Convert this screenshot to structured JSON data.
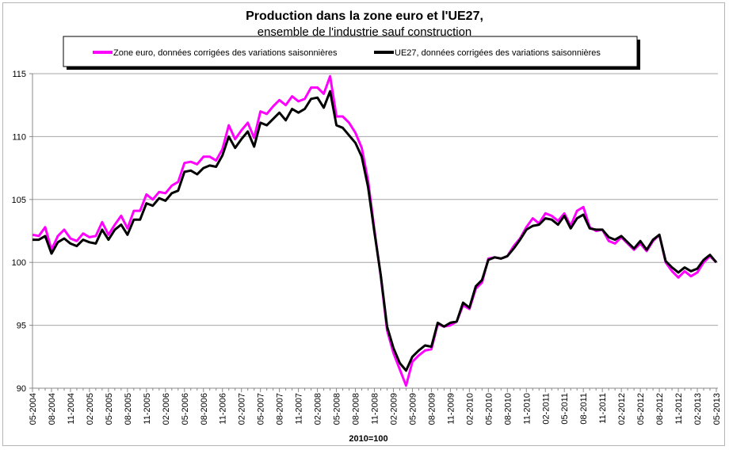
{
  "chart_data": {
    "type": "line",
    "title": "Production dans la zone euro et l'UE27,",
    "subtitle": "ensemble de l'industrie sauf construction",
    "xlabel": "2010=100",
    "ylabel": "",
    "ylim": [
      90,
      115
    ],
    "yticks": [
      "90",
      "95",
      "100",
      "105",
      "110",
      "115"
    ],
    "grid": true,
    "legend_position": "top",
    "x_start": "05-2004",
    "x_end": "05-2013",
    "xtick_labels": [
      "05-2004",
      "08-2004",
      "11-2004",
      "02-2005",
      "05-2005",
      "08-2005",
      "11-2005",
      "02-2006",
      "05-2006",
      "08-2006",
      "11-2006",
      "02-2007",
      "05-2007",
      "08-2007",
      "11-2007",
      "02-2008",
      "05-2008",
      "08-2008",
      "11-2008",
      "02-2009",
      "05-2009",
      "08-2009",
      "11-2009",
      "02-2010",
      "05-2010",
      "08-2010",
      "11-2010",
      "02-2011",
      "05-2011",
      "08-2011",
      "11-2011",
      "02-2012",
      "05-2012",
      "08-2012",
      "11-2012",
      "02-2013",
      "05-2013"
    ],
    "series": [
      {
        "name": "Zone euro, données corrigées des variations saisonnières",
        "color": "#ff00ff",
        "values": [
          102.2,
          102.1,
          102.8,
          101.0,
          102.1,
          102.6,
          101.9,
          101.7,
          102.3,
          102.0,
          102.1,
          103.2,
          102.2,
          103.0,
          103.7,
          102.7,
          104.1,
          104.1,
          105.4,
          105.0,
          105.6,
          105.5,
          106.1,
          106.4,
          107.9,
          108.0,
          107.8,
          108.4,
          108.4,
          108.1,
          109.0,
          110.9,
          109.8,
          110.5,
          111.1,
          109.9,
          112.0,
          111.8,
          112.4,
          112.9,
          112.5,
          113.2,
          112.8,
          113.0,
          113.9,
          113.9,
          113.4,
          114.8,
          111.6,
          111.6,
          111.1,
          110.3,
          109.1,
          106.5,
          102.6,
          98.9,
          94.6,
          92.8,
          91.5,
          90.2,
          92.1,
          92.6,
          93.0,
          93.1,
          95.1,
          94.9,
          95.0,
          95.3,
          96.6,
          96.3,
          97.9,
          98.4,
          100.3,
          100.4,
          100.3,
          100.5,
          101.3,
          101.9,
          102.8,
          103.5,
          103.1,
          103.9,
          103.7,
          103.3,
          103.9,
          102.9,
          104.1,
          104.4,
          102.8,
          102.5,
          102.6,
          101.7,
          101.5,
          102.0,
          101.5,
          101.0,
          101.5,
          100.9,
          101.7,
          102.2,
          100.0,
          99.3,
          98.8,
          99.3,
          98.9,
          99.2,
          100.0,
          100.5,
          100.0
        ]
      },
      {
        "name": "UE27, données corrigées des variations saisonnières",
        "color": "#000000",
        "values": [
          101.8,
          101.8,
          102.1,
          100.7,
          101.6,
          101.9,
          101.5,
          101.3,
          101.8,
          101.6,
          101.5,
          102.6,
          101.8,
          102.6,
          103.0,
          102.2,
          103.4,
          103.4,
          104.7,
          104.5,
          105.1,
          104.9,
          105.5,
          105.7,
          107.2,
          107.3,
          107.0,
          107.5,
          107.7,
          107.6,
          108.5,
          110.0,
          109.1,
          109.8,
          110.4,
          109.2,
          111.1,
          110.9,
          111.4,
          111.9,
          111.3,
          112.2,
          111.9,
          112.2,
          113.0,
          113.1,
          112.3,
          113.6,
          110.9,
          110.7,
          110.1,
          109.5,
          108.4,
          106.0,
          102.4,
          99.0,
          94.9,
          93.2,
          92.0,
          91.4,
          92.5,
          93.0,
          93.4,
          93.3,
          95.2,
          94.9,
          95.2,
          95.3,
          96.8,
          96.4,
          98.1,
          98.6,
          100.2,
          100.4,
          100.3,
          100.5,
          101.1,
          101.8,
          102.6,
          102.9,
          103.0,
          103.5,
          103.4,
          103.0,
          103.7,
          102.7,
          103.5,
          103.8,
          102.7,
          102.6,
          102.6,
          102.0,
          101.8,
          102.1,
          101.6,
          101.1,
          101.7,
          101.0,
          101.8,
          102.2,
          100.1,
          99.6,
          99.2,
          99.6,
          99.3,
          99.5,
          100.2,
          100.6,
          100.0
        ]
      }
    ]
  }
}
